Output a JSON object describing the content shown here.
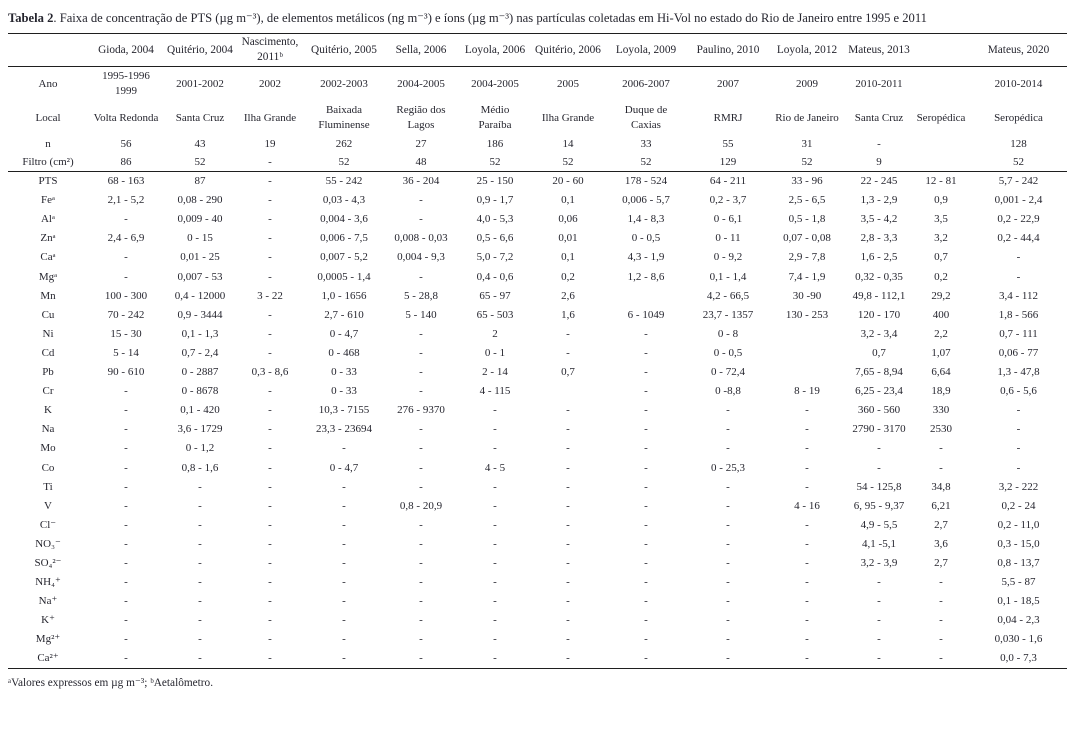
{
  "title": {
    "bold": "Tabela 2",
    "rest": ". Faixa de concentração de PTS (µg m⁻³), de elementos metálicos (ng m⁻³) e íons (µg m⁻³) nas partículas coletadas em Hi-Vol no estado do Rio de Janeiro entre 1995 e 2011"
  },
  "table": {
    "authors": [
      "",
      "Gioda, 2004",
      "Quitério, 2004",
      "Nascimento,\n2011ᵇ",
      "Quitério, 2005",
      "Sella, 2006",
      "Loyola, 2006",
      "Quitério, 2006",
      "Loyola, 2009",
      "Paulino, 2010",
      "Loyola, 2012",
      "Mateus, 2013",
      "",
      "Mateus, 2020"
    ],
    "meta_rows": [
      {
        "label": "Ano",
        "tall": true,
        "values": [
          "1995-1996\n1999",
          "2001-2002",
          "2002",
          "2002-2003",
          "2004-2005",
          "2004-2005",
          "2005",
          "2006-2007",
          "2007",
          "2009",
          "2010-2011",
          "",
          "2010-2014"
        ]
      },
      {
        "label": "Local",
        "tall": true,
        "values": [
          "Volta Redonda",
          "Santa Cruz",
          "Ilha Grande",
          "Baixada\nFluminense",
          "Região dos\nLagos",
          "Médio\nParaíba",
          "Ilha Grande",
          "Duque de\nCaxias",
          "RMRJ",
          "Rio de Janeiro",
          "Santa Cruz",
          "Seropédica",
          "Seropédica"
        ]
      },
      {
        "label": "n",
        "tall": false,
        "values": [
          "56",
          "43",
          "19",
          "262",
          "27",
          "186",
          "14",
          "33",
          "55",
          "31",
          "-",
          "",
          "128"
        ]
      },
      {
        "label": "Filtro (cm²)",
        "tall": false,
        "values": [
          "86",
          "52",
          "-",
          "52",
          "48",
          "52",
          "52",
          "52",
          "129",
          "52",
          "9",
          "",
          "52"
        ]
      }
    ],
    "data_rows": [
      {
        "label": "PTS",
        "values": [
          "68 - 163",
          "87",
          "-",
          "55 - 242",
          "36 - 204",
          "25 - 150",
          "20 - 60",
          "178 - 524",
          "64 - 211",
          "33 - 96",
          "22 - 245",
          "12 - 81",
          "5,7 - 242"
        ]
      },
      {
        "label": "Feᵃ",
        "values": [
          "2,1 - 5,2",
          "0,08 - 290",
          "-",
          "0,03 - 4,3",
          "-",
          "0,9 - 1,7",
          "0,1",
          "0,006 - 5,7",
          "0,2 - 3,7",
          "2,5 - 6,5",
          "1,3 - 2,9",
          "0,9",
          "0,001 - 2,4"
        ]
      },
      {
        "label": "Alᵃ",
        "values": [
          "-",
          "0,009 - 40",
          "-",
          "0,004 - 3,6",
          "-",
          "4,0 - 5,3",
          "0,06",
          "1,4 - 8,3",
          "0 - 6,1",
          "0,5 - 1,8",
          "3,5 - 4,2",
          "3,5",
          "0,2 - 22,9"
        ]
      },
      {
        "label": "Znᵃ",
        "values": [
          "2,4 - 6,9",
          "0 - 15",
          "-",
          "0,006 - 7,5",
          "0,008 - 0,03",
          "0,5 - 6,6",
          "0,01",
          "0 - 0,5",
          "0 - 11",
          "0,07 - 0,08",
          "2,8 - 3,3",
          "3,2",
          "0,2 - 44,4"
        ]
      },
      {
        "label": "Caᵃ",
        "values": [
          "-",
          "0,01 - 25",
          "-",
          "0,007 - 5,2",
          "0,004 - 9,3",
          "5,0 - 7,2",
          "0,1",
          "4,3 - 1,9",
          "0 - 9,2",
          "2,9 - 7,8",
          "1,6 - 2,5",
          "0,7",
          "-"
        ]
      },
      {
        "label": "Mgᵃ",
        "values": [
          "-",
          "0,007 - 53",
          "-",
          "0,0005 - 1,4",
          "-",
          "0,4 - 0,6",
          "0,2",
          "1,2 - 8,6",
          "0,1 - 1,4",
          "7,4 - 1,9",
          "0,32 - 0,35",
          "0,2",
          "-"
        ]
      },
      {
        "label": "Mn",
        "values": [
          "100 - 300",
          "0,4 - 12000",
          "3 - 22",
          "1,0 - 1656",
          "5 - 28,8",
          "65 - 97",
          "2,6",
          "",
          "4,2 - 66,5",
          "30 -90",
          "49,8 - 112,1",
          "29,2",
          "3,4 - 112"
        ]
      },
      {
        "label": "Cu",
        "values": [
          "70 - 242",
          "0,9 - 3444",
          "-",
          "2,7 - 610",
          "5 - 140",
          "65 - 503",
          "1,6",
          "6 - 1049",
          "23,7 - 1357",
          "130 - 253",
          "120 - 170",
          "400",
          "1,8 - 566"
        ]
      },
      {
        "label": "Ni",
        "values": [
          "15 - 30",
          "0,1 - 1,3",
          "-",
          "0 - 4,7",
          "-",
          "2",
          "-",
          "-",
          "0 - 8",
          "",
          "3,2 - 3,4",
          "2,2",
          "0,7 - 111"
        ]
      },
      {
        "label": "Cd",
        "values": [
          "5 - 14",
          "0,7 - 2,4",
          "-",
          "0 - 468",
          "-",
          "0 - 1",
          "-",
          "-",
          "0 - 0,5",
          "",
          "0,7",
          "1,07",
          "0,06 - 77"
        ]
      },
      {
        "label": "Pb",
        "values": [
          "90 - 610",
          "0 - 2887",
          "0,3 - 8,6",
          "0 - 33",
          "-",
          "2 - 14",
          "0,7",
          "-",
          "0 - 72,4",
          "",
          "7,65 - 8,94",
          "6,64",
          "1,3 - 47,8"
        ]
      },
      {
        "label": "Cr",
        "values": [
          "-",
          "0 - 8678",
          "-",
          "0 - 33",
          "-",
          "4 - 115",
          "",
          "-",
          "0 -8,8",
          "8 - 19",
          "6,25 - 23,4",
          "18,9",
          "0,6 - 5,6"
        ]
      },
      {
        "label": "K",
        "values": [
          "-",
          "0,1 - 420",
          "-",
          "10,3 - 7155",
          "276 - 9370",
          "-",
          "-",
          "-",
          "-",
          "-",
          "360 - 560",
          "330",
          "-"
        ]
      },
      {
        "label": "Na",
        "values": [
          "-",
          "3,6 - 1729",
          "-",
          "23,3 - 23694",
          "-",
          "-",
          "-",
          "-",
          "-",
          "-",
          "2790 - 3170",
          "2530",
          "-"
        ]
      },
      {
        "label": "Mo",
        "values": [
          "-",
          "0 - 1,2",
          "-",
          "-",
          "-",
          "-",
          "-",
          "-",
          "-",
          "-",
          "-",
          "-",
          "-"
        ]
      },
      {
        "label": "Co",
        "values": [
          "-",
          "0,8 - 1,6",
          "-",
          "0 - 4,7",
          "-",
          "4 - 5",
          "-",
          "-",
          "0 - 25,3",
          "-",
          "-",
          "-",
          "-"
        ]
      },
      {
        "label": "Ti",
        "values": [
          "-",
          "-",
          "-",
          "-",
          "-",
          "-",
          "-",
          "-",
          "-",
          "-",
          "54 - 125,8",
          "34,8",
          "3,2 - 222"
        ]
      },
      {
        "label": "V",
        "values": [
          "-",
          "-",
          "-",
          "-",
          "0,8 - 20,9",
          "-",
          "-",
          "-",
          "-",
          "4 - 16",
          "6, 95 - 9,37",
          "6,21",
          "0,2 - 24"
        ]
      },
      {
        "label": "Cl⁻",
        "values": [
          "-",
          "-",
          "-",
          "-",
          "-",
          "-",
          "-",
          "-",
          "-",
          "-",
          "4,9 - 5,5",
          "2,7",
          "0,2 - 11,0"
        ]
      },
      {
        "label": "NO₃⁻",
        "values": [
          "-",
          "-",
          "-",
          "-",
          "-",
          "-",
          "-",
          "-",
          "-",
          "-",
          "4,1 -5,1",
          "3,6",
          "0,3 - 15,0"
        ]
      },
      {
        "label": "SO₄²⁻",
        "values": [
          "-",
          "-",
          "-",
          "-",
          "-",
          "-",
          "-",
          "-",
          "-",
          "-",
          "3,2 - 3,9",
          "2,7",
          "0,8 - 13,7"
        ]
      },
      {
        "label": "NH₄⁺",
        "values": [
          "-",
          "-",
          "-",
          "-",
          "-",
          "-",
          "-",
          "-",
          "-",
          "-",
          "-",
          "-",
          "5,5 - 87"
        ]
      },
      {
        "label": "Na⁺",
        "values": [
          "-",
          "-",
          "-",
          "-",
          "-",
          "-",
          "-",
          "-",
          "-",
          "-",
          "-",
          "-",
          "0,1 - 18,5"
        ]
      },
      {
        "label": "K⁺",
        "values": [
          "-",
          "-",
          "-",
          "-",
          "-",
          "-",
          "-",
          "-",
          "-",
          "-",
          "-",
          "-",
          "0,04 - 2,3"
        ]
      },
      {
        "label": "Mg²⁺",
        "values": [
          "-",
          "-",
          "-",
          "-",
          "-",
          "-",
          "-",
          "-",
          "-",
          "-",
          "-",
          "-",
          "0,030 - 1,6"
        ]
      },
      {
        "label": "Ca²⁺",
        "values": [
          "-",
          "-",
          "-",
          "-",
          "-",
          "-",
          "-",
          "-",
          "-",
          "-",
          "-",
          "-",
          "0,0 - 7,3"
        ]
      }
    ]
  },
  "footnote": "ᵃValores expressos em µg m⁻³; ᵇAetalômetro."
}
